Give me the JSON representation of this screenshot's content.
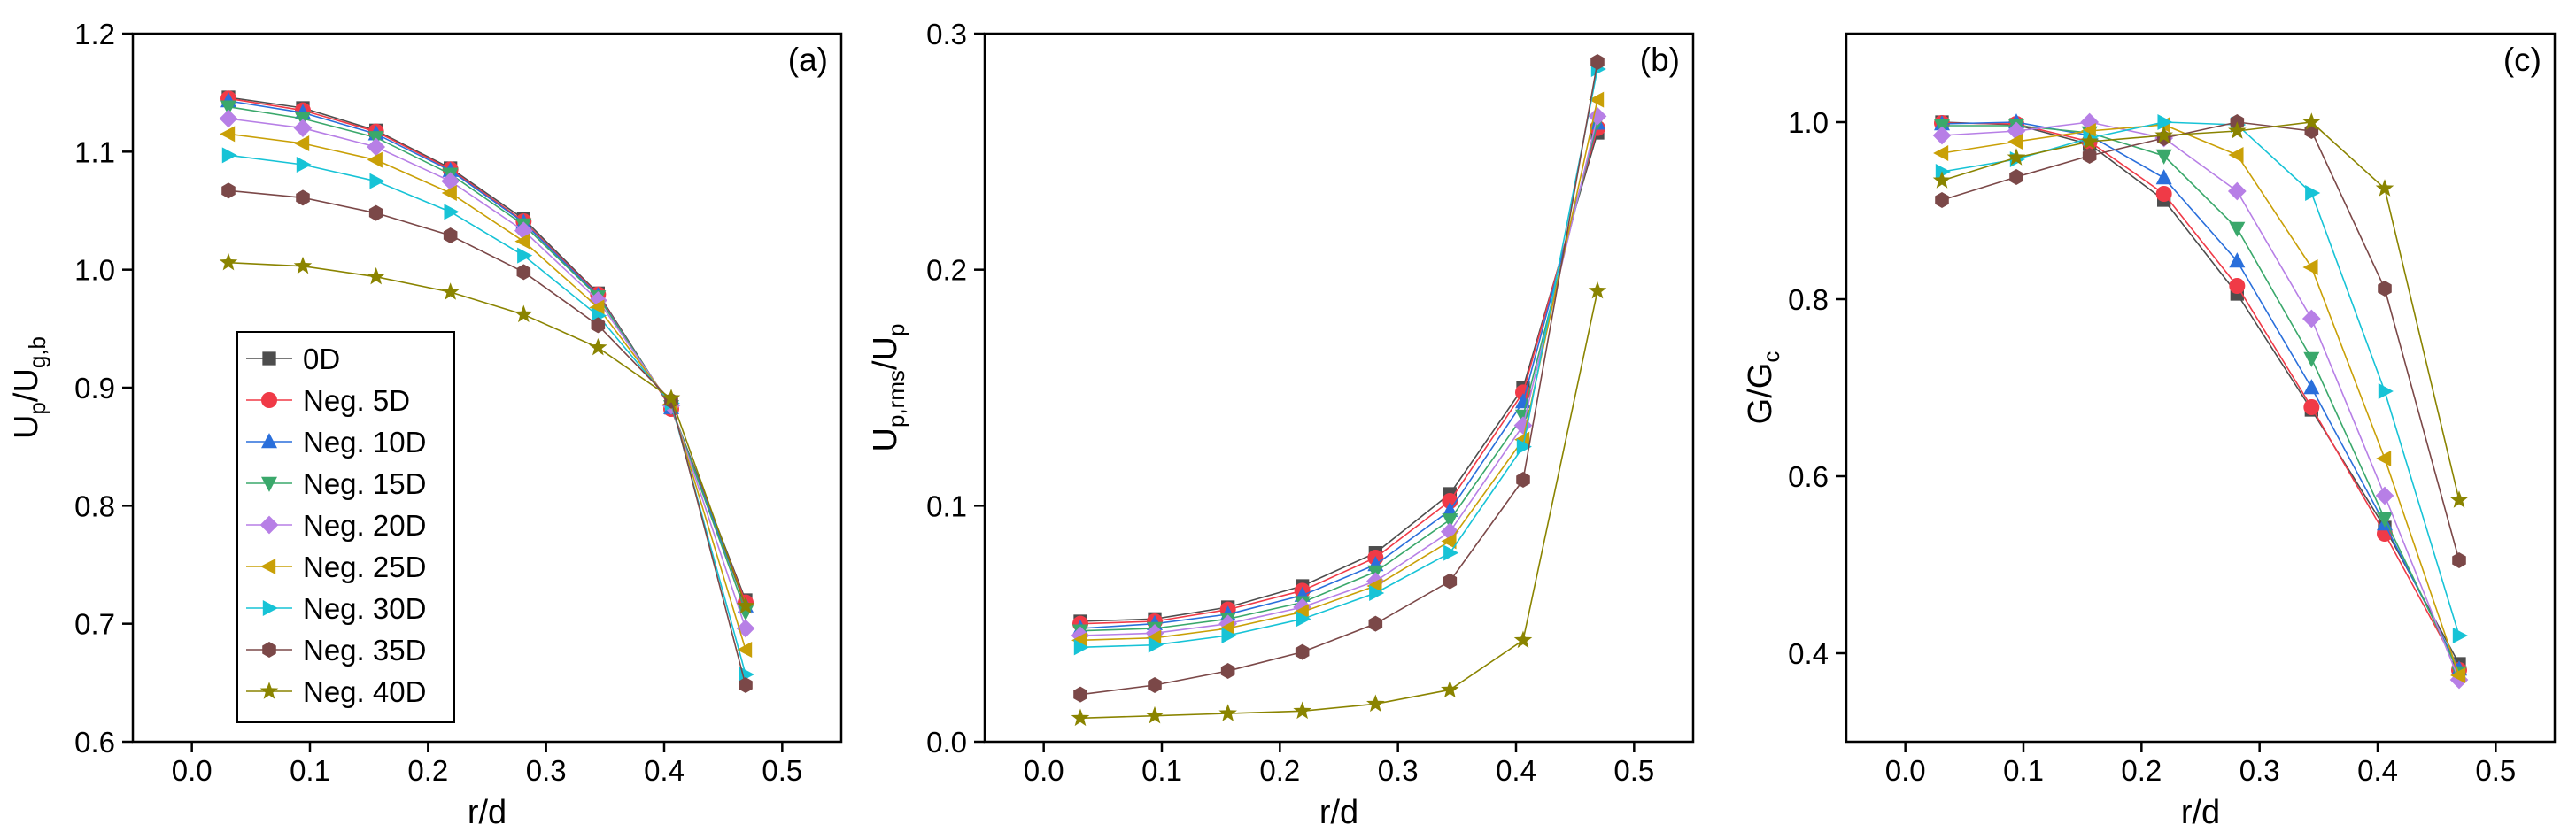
{
  "legend": {
    "entries": [
      {
        "label": "0D",
        "color": "#4d4d4d",
        "marker": "square"
      },
      {
        "label": "Neg. 5D",
        "color": "#f03a47",
        "marker": "circle"
      },
      {
        "label": "Neg. 10D",
        "color": "#2a6fdb",
        "marker": "triangle-up"
      },
      {
        "label": "Neg. 15D",
        "color": "#3aa86b",
        "marker": "triangle-down"
      },
      {
        "label": "Neg. 20D",
        "color": "#b77fe6",
        "marker": "diamond"
      },
      {
        "label": "Neg. 25D",
        "color": "#c9a007",
        "marker": "triangle-left"
      },
      {
        "label": "Neg. 30D",
        "color": "#17c3d6",
        "marker": "triangle-right"
      },
      {
        "label": "Neg. 35D",
        "color": "#7b4848",
        "marker": "hexagon"
      },
      {
        "label": "Neg. 40D",
        "color": "#8a8400",
        "marker": "star"
      }
    ]
  },
  "chart_data": [
    {
      "type": "line",
      "panel_label": "(a)",
      "xlabel": "r/d",
      "ylabel_main": "U",
      "ylabel_sub1": "p",
      "ylabel_mid": "/U",
      "ylabel_sub2": "g,b",
      "xlim": [
        -0.05,
        0.55
      ],
      "ylim": [
        0.6,
        1.2
      ],
      "xticks": [
        0.0,
        0.1,
        0.2,
        0.3,
        0.4,
        0.5
      ],
      "xtick_labels": [
        "0.0",
        "0.1",
        "0.2",
        "0.3",
        "0.4",
        "0.5"
      ],
      "yticks": [
        0.6,
        0.7,
        0.8,
        0.9,
        1.0,
        1.1,
        1.2
      ],
      "ytick_labels": [
        "0.6",
        "0.7",
        "0.8",
        "0.9",
        "1.0",
        "1.1",
        "1.2"
      ],
      "x": [
        0.031,
        0.094,
        0.156,
        0.219,
        0.281,
        0.344,
        0.406,
        0.469
      ],
      "series": [
        {
          "name": "0D",
          "values": [
            1.146,
            1.137,
            1.118,
            1.086,
            1.043,
            0.98,
            0.883,
            0.72
          ]
        },
        {
          "name": "Neg. 5D",
          "values": [
            1.145,
            1.135,
            1.117,
            1.085,
            1.041,
            0.979,
            0.882,
            0.718
          ]
        },
        {
          "name": "Neg. 10D",
          "values": [
            1.143,
            1.133,
            1.115,
            1.084,
            1.04,
            0.978,
            0.883,
            0.715
          ]
        },
        {
          "name": "Neg. 15D",
          "values": [
            1.138,
            1.128,
            1.112,
            1.081,
            1.038,
            0.977,
            0.884,
            0.71
          ]
        },
        {
          "name": "Neg. 20D",
          "values": [
            1.128,
            1.12,
            1.104,
            1.075,
            1.033,
            0.974,
            0.885,
            0.696
          ]
        },
        {
          "name": "Neg. 25D",
          "values": [
            1.115,
            1.107,
            1.093,
            1.065,
            1.024,
            0.968,
            0.886,
            0.678
          ]
        },
        {
          "name": "Neg. 30D",
          "values": [
            1.097,
            1.089,
            1.075,
            1.049,
            1.012,
            0.961,
            0.887,
            0.657
          ]
        },
        {
          "name": "Neg. 35D",
          "values": [
            1.067,
            1.061,
            1.048,
            1.029,
            0.998,
            0.953,
            0.889,
            0.648
          ]
        },
        {
          "name": "Neg. 40D",
          "values": [
            1.006,
            1.003,
            0.994,
            0.981,
            0.962,
            0.934,
            0.891,
            0.715
          ]
        }
      ]
    },
    {
      "type": "line",
      "panel_label": "(b)",
      "xlabel": "r/d",
      "ylabel_main": "U",
      "ylabel_sub1": "p,rms",
      "ylabel_mid": "/U",
      "ylabel_sub2": "p",
      "xlim": [
        -0.05,
        0.55
      ],
      "ylim": [
        0.0,
        0.3
      ],
      "xticks": [
        0.0,
        0.1,
        0.2,
        0.3,
        0.4,
        0.5
      ],
      "xtick_labels": [
        "0.0",
        "0.1",
        "0.2",
        "0.3",
        "0.4",
        "0.5"
      ],
      "yticks": [
        0.0,
        0.1,
        0.2,
        0.3
      ],
      "ytick_labels": [
        "0.0",
        "0.1",
        "0.2",
        "0.3"
      ],
      "x": [
        0.031,
        0.094,
        0.156,
        0.219,
        0.281,
        0.344,
        0.406,
        0.469
      ],
      "series": [
        {
          "name": "0D",
          "values": [
            0.051,
            0.052,
            0.057,
            0.066,
            0.08,
            0.105,
            0.15,
            0.258
          ]
        },
        {
          "name": "Neg. 5D",
          "values": [
            0.05,
            0.051,
            0.056,
            0.064,
            0.078,
            0.102,
            0.148,
            0.26
          ]
        },
        {
          "name": "Neg. 10D",
          "values": [
            0.048,
            0.05,
            0.054,
            0.062,
            0.075,
            0.098,
            0.144,
            0.262
          ]
        },
        {
          "name": "Neg. 15D",
          "values": [
            0.047,
            0.048,
            0.052,
            0.059,
            0.072,
            0.094,
            0.138,
            0.263
          ]
        },
        {
          "name": "Neg. 20D",
          "values": [
            0.045,
            0.046,
            0.05,
            0.057,
            0.068,
            0.089,
            0.134,
            0.265
          ]
        },
        {
          "name": "Neg. 25D",
          "values": [
            0.043,
            0.044,
            0.048,
            0.055,
            0.066,
            0.085,
            0.128,
            0.272
          ]
        },
        {
          "name": "Neg. 30D",
          "values": [
            0.04,
            0.041,
            0.045,
            0.052,
            0.063,
            0.08,
            0.125,
            0.285
          ]
        },
        {
          "name": "Neg. 35D",
          "values": [
            0.02,
            0.024,
            0.03,
            0.038,
            0.05,
            0.068,
            0.111,
            0.288
          ]
        },
        {
          "name": "Neg. 40D",
          "values": [
            0.01,
            0.011,
            0.012,
            0.013,
            0.016,
            0.022,
            0.043,
            0.191
          ]
        }
      ]
    },
    {
      "type": "line",
      "panel_label": "(c)",
      "xlabel": "r/d",
      "ylabel_main": "G/G",
      "ylabel_sub1": "c",
      "ylabel_mid": "",
      "ylabel_sub2": "",
      "xlim": [
        -0.05,
        0.55
      ],
      "ylim": [
        0.3,
        1.1
      ],
      "xticks": [
        0.0,
        0.1,
        0.2,
        0.3,
        0.4,
        0.5
      ],
      "xtick_labels": [
        "0.0",
        "0.1",
        "0.2",
        "0.3",
        "0.4",
        "0.5"
      ],
      "yticks": [
        0.4,
        0.6,
        0.8,
        1.0
      ],
      "ytick_labels": [
        "0.4",
        "0.6",
        "0.8",
        "1.0"
      ],
      "x": [
        0.031,
        0.094,
        0.156,
        0.219,
        0.281,
        0.344,
        0.406,
        0.469
      ],
      "series": [
        {
          "name": "0D",
          "values": [
            1.0,
            0.997,
            0.975,
            0.912,
            0.806,
            0.675,
            0.542,
            0.388
          ]
        },
        {
          "name": "Neg. 5D",
          "values": [
            0.999,
            0.998,
            0.978,
            0.919,
            0.815,
            0.678,
            0.535,
            0.381
          ]
        },
        {
          "name": "Neg. 10D",
          "values": [
            0.998,
            1.0,
            0.985,
            0.937,
            0.843,
            0.7,
            0.546,
            0.382
          ]
        },
        {
          "name": "Neg. 15D",
          "values": [
            0.996,
            0.996,
            0.988,
            0.962,
            0.88,
            0.733,
            0.552,
            0.378
          ]
        },
        {
          "name": "Neg. 20D",
          "values": [
            0.985,
            0.99,
            1.0,
            0.982,
            0.922,
            0.778,
            0.578,
            0.37
          ]
        },
        {
          "name": "Neg. 25D",
          "values": [
            0.965,
            0.978,
            0.99,
            0.997,
            0.963,
            0.836,
            0.62,
            0.375
          ]
        },
        {
          "name": "Neg. 30D",
          "values": [
            0.944,
            0.958,
            0.982,
            1.0,
            0.997,
            0.92,
            0.696,
            0.42
          ]
        },
        {
          "name": "Neg. 35D",
          "values": [
            0.912,
            0.938,
            0.962,
            0.982,
            1.0,
            0.99,
            0.812,
            0.505
          ]
        },
        {
          "name": "Neg. 40D",
          "values": [
            0.934,
            0.96,
            0.978,
            0.985,
            0.99,
            1.0,
            0.925,
            0.573
          ]
        }
      ]
    }
  ]
}
